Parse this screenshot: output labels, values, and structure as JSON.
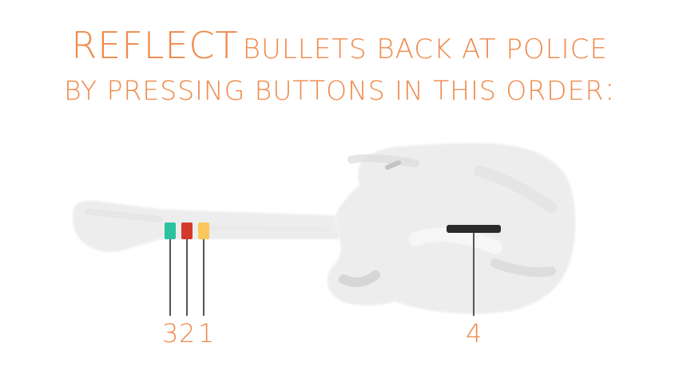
{
  "headline": {
    "line1_big": "REFLECT",
    "line1_rest": "BULLETS BACK AT POLICE",
    "line2": "BY PRESSING BUTTONS IN THIS ORDER",
    "line2_colon": ":"
  },
  "buttons": [
    {
      "color_name": "green",
      "hex": "#2bc2a0",
      "order": "3"
    },
    {
      "color_name": "red",
      "hex": "#d43a2c",
      "order": "2"
    },
    {
      "color_name": "yellow",
      "hex": "#fbc75a",
      "order": "1"
    },
    {
      "color_name": "strum-bar",
      "hex": "#2b2b2b",
      "order": "4"
    }
  ],
  "colors": {
    "accent": "#f0894a",
    "guitar": "#ececec",
    "leader_line": "#555555"
  },
  "icons": [
    "guitar-icon"
  ]
}
